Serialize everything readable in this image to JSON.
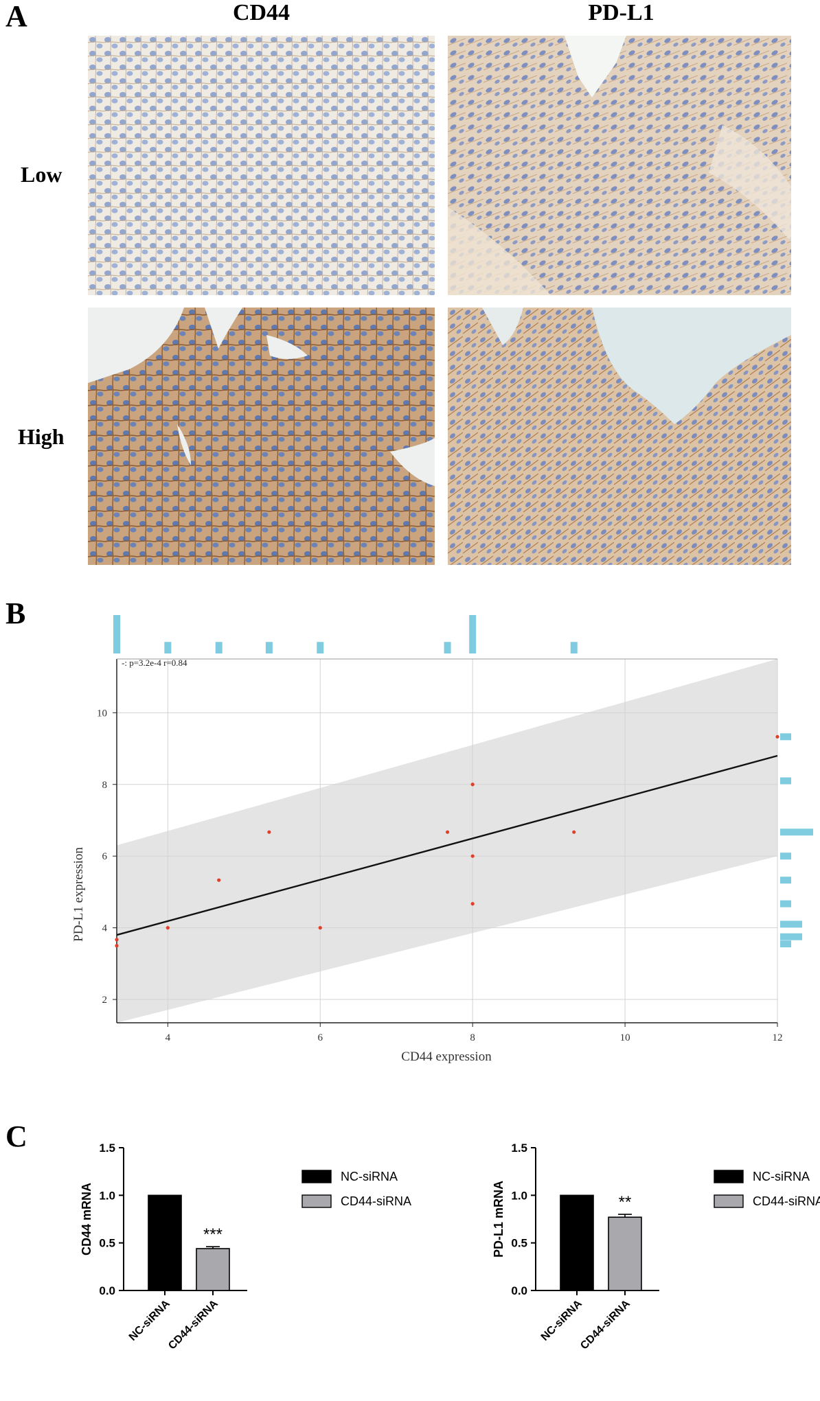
{
  "panelA": {
    "letter": "A",
    "columns": [
      "CD44",
      "PD-L1"
    ],
    "rows": [
      "Low",
      "High"
    ]
  },
  "panelB": {
    "letter": "B"
  },
  "panelC": {
    "letter": "C"
  },
  "colors": {
    "tissue_low": "#e6dccd",
    "tissue_high": "#c69a6c",
    "nuclei": "#6f86b8",
    "histogram": "#7fcbdf",
    "point": "#e0402a",
    "band": "#e4e4e4",
    "nc_bar": "#000000",
    "cd44_bar": "#a8a8ad"
  },
  "chart_data": [
    {
      "type": "scatter",
      "xlabel": "CD44 expression",
      "ylabel": "PD-L1 expression",
      "annotation": "-: p=3.2e-4 r=0.84",
      "xlim": [
        3.33,
        12
      ],
      "ylim": [
        1.35,
        11.5
      ],
      "xticks": [
        4,
        6,
        8,
        10,
        12
      ],
      "yticks": [
        2,
        4,
        6,
        8,
        10
      ],
      "grid": true,
      "points": [
        {
          "x": 3.33,
          "y": 3.67
        },
        {
          "x": 3.33,
          "y": 3.5
        },
        {
          "x": 4,
          "y": 4
        },
        {
          "x": 4.67,
          "y": 5.33
        },
        {
          "x": 5.33,
          "y": 6.67
        },
        {
          "x": 6,
          "y": 4
        },
        {
          "x": 7.67,
          "y": 6.67
        },
        {
          "x": 8,
          "y": 8
        },
        {
          "x": 8,
          "y": 6
        },
        {
          "x": 8,
          "y": 4.67
        },
        {
          "x": 9.33,
          "y": 6.67
        },
        {
          "x": 12,
          "y": 9.33
        }
      ],
      "fit_line": [
        {
          "x": 3.33,
          "y": 3.8
        },
        {
          "x": 12,
          "y": 8.8
        }
      ],
      "confidence_band": {
        "upper": [
          {
            "x": 3.33,
            "y": 6.3
          },
          {
            "x": 12,
            "y": 11.5
          }
        ],
        "lower": [
          {
            "x": 3.33,
            "y": 1.35
          },
          {
            "x": 12,
            "y": 6.0
          }
        ]
      },
      "x_marginal_hist": [
        {
          "x": 3.33,
          "count": 2
        },
        {
          "x": 4,
          "count": 0.6
        },
        {
          "x": 4.67,
          "count": 0.6
        },
        {
          "x": 5.33,
          "count": 0.6
        },
        {
          "x": 6,
          "count": 0.6
        },
        {
          "x": 7.67,
          "count": 0.6
        },
        {
          "x": 8,
          "count": 2
        },
        {
          "x": 9.33,
          "count": 0.6
        }
      ],
      "y_marginal_hist": [
        {
          "y": 9.33,
          "count": 1
        },
        {
          "y": 8.1,
          "count": 1
        },
        {
          "y": 6.67,
          "count": 3
        },
        {
          "y": 6.0,
          "count": 1
        },
        {
          "y": 5.33,
          "count": 1
        },
        {
          "y": 4.67,
          "count": 1
        },
        {
          "y": 4.1,
          "count": 2
        },
        {
          "y": 3.75,
          "count": 2
        },
        {
          "y": 3.55,
          "count": 1
        }
      ]
    },
    {
      "type": "bar",
      "ylabel": "CD44 mRNA",
      "categories": [
        "NC-siRNA",
        "CD44-siRNA"
      ],
      "values": [
        1.0,
        0.44
      ],
      "errors": [
        0,
        0.02
      ],
      "significance": [
        "",
        "***"
      ],
      "ylim": [
        0,
        1.5
      ],
      "yticks": [
        "0.0",
        "0.5",
        "1.0",
        "1.5"
      ],
      "legend": [
        "NC-siRNA",
        "CD44-siRNA"
      ],
      "legend_position": "top-right"
    },
    {
      "type": "bar",
      "ylabel": "PD-L1 mRNA",
      "categories": [
        "NC-siRNA",
        "CD44-siRNA"
      ],
      "values": [
        1.0,
        0.77
      ],
      "errors": [
        0,
        0.03
      ],
      "significance": [
        "",
        "**"
      ],
      "ylim": [
        0,
        1.5
      ],
      "yticks": [
        "0.0",
        "0.5",
        "1.0",
        "1.5"
      ],
      "legend": [
        "NC-siRNA",
        "CD44-siRNA"
      ],
      "legend_position": "top-right"
    }
  ]
}
